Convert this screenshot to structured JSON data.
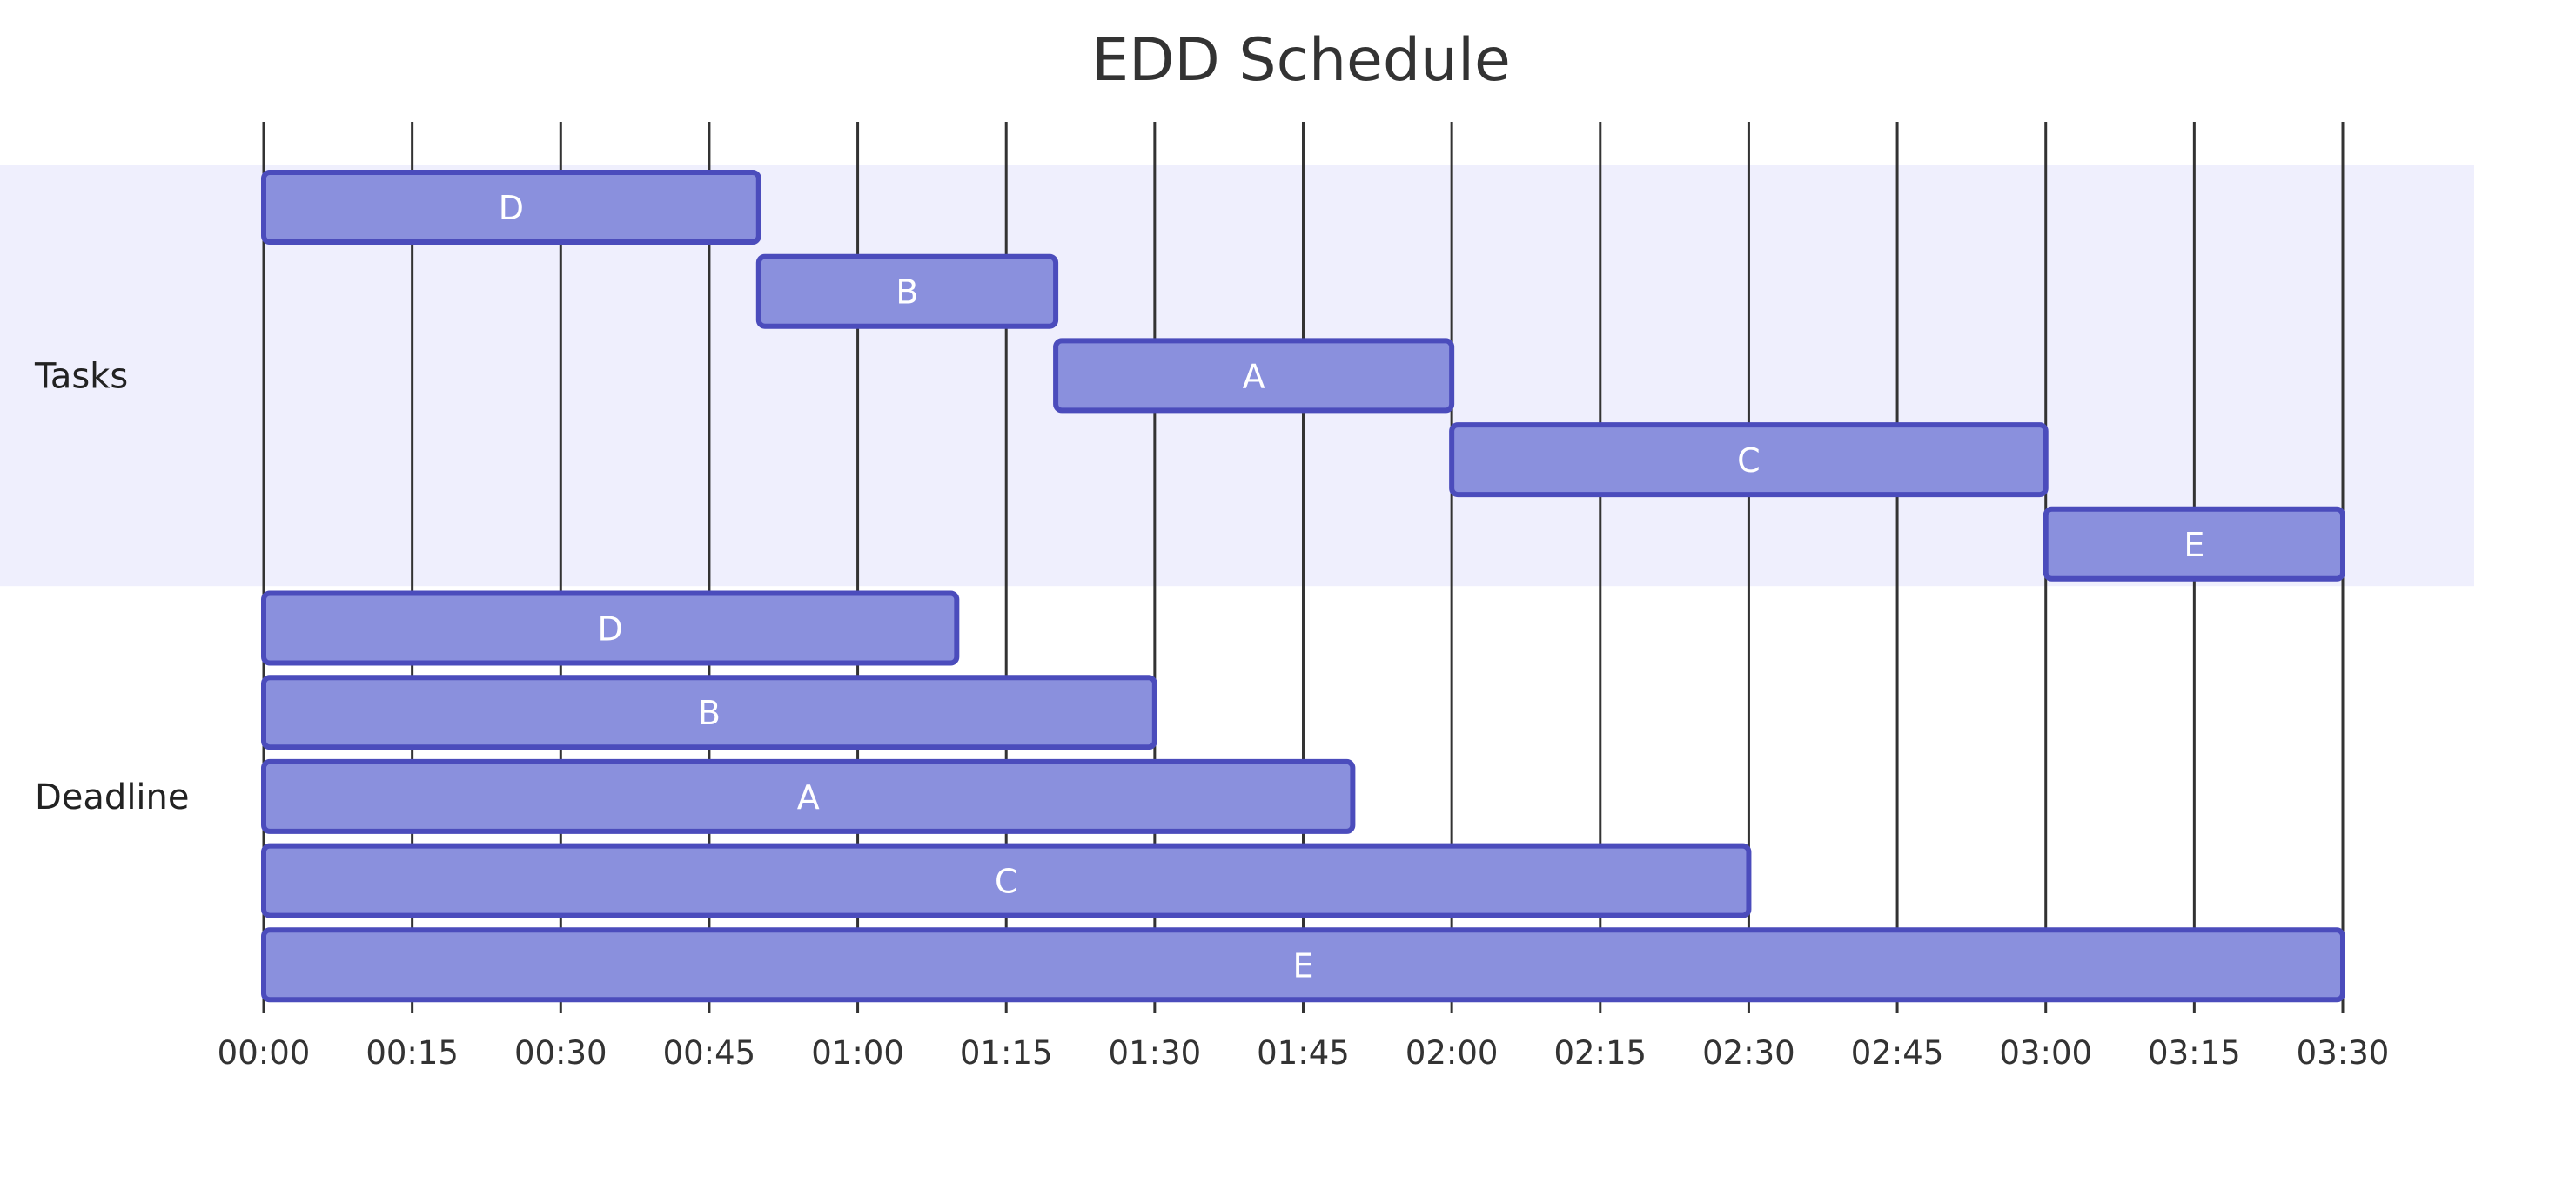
{
  "chart_data": {
    "type": "gantt",
    "title": "EDD Schedule",
    "time_unit": "minutes",
    "x_range": [
      0,
      210
    ],
    "tick_labels": [
      "00:00",
      "00:15",
      "00:30",
      "00:45",
      "01:00",
      "01:15",
      "01:30",
      "01:45",
      "02:00",
      "02:15",
      "02:30",
      "02:45",
      "03:00",
      "03:15",
      "03:30"
    ],
    "grid": true,
    "sections": [
      {
        "name": "Tasks",
        "shaded": true,
        "tasks": [
          {
            "label": "D",
            "start": 0,
            "end": 50
          },
          {
            "label": "B",
            "start": 50,
            "end": 80
          },
          {
            "label": "A",
            "start": 80,
            "end": 120
          },
          {
            "label": "C",
            "start": 120,
            "end": 180
          },
          {
            "label": "E",
            "start": 180,
            "end": 210
          }
        ]
      },
      {
        "name": "Deadline",
        "shaded": false,
        "tasks": [
          {
            "label": "D",
            "start": 0,
            "end": 70
          },
          {
            "label": "B",
            "start": 0,
            "end": 90
          },
          {
            "label": "A",
            "start": 0,
            "end": 110
          },
          {
            "label": "C",
            "start": 0,
            "end": 150
          },
          {
            "label": "E",
            "start": 0,
            "end": 210
          }
        ]
      }
    ],
    "colors": {
      "bar_fill": "#8a90dd",
      "bar_stroke": "#4b4cbc",
      "section_band": "#efeffd",
      "grid": "#333333"
    }
  }
}
